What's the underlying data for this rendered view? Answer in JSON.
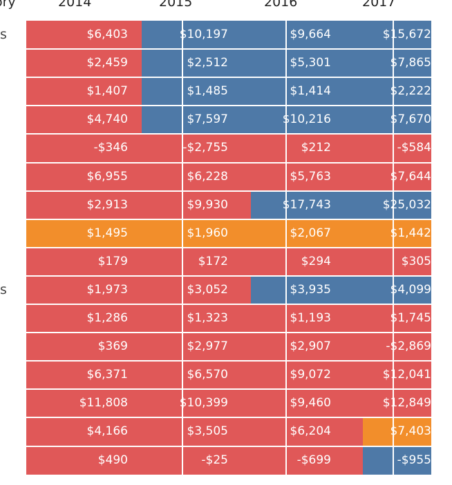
{
  "chart_data": {
    "type": "table",
    "header": {
      "category_label": "ory",
      "years": [
        "2014",
        "2015",
        "2016",
        "2017"
      ]
    },
    "row_labels": [
      "s",
      "",
      "",
      "",
      "",
      "",
      "",
      "",
      "",
      "s",
      "",
      "",
      "",
      "",
      "",
      ""
    ],
    "rows": [
      [
        "$6,403",
        "$10,197",
        "$9,664",
        "$15,672"
      ],
      [
        "$2,459",
        "$2,512",
        "$5,301",
        "$7,865"
      ],
      [
        "$1,407",
        "$1,485",
        "$1,414",
        "$2,222"
      ],
      [
        "$4,740",
        "$7,597",
        "$10,216",
        "$7,670"
      ],
      [
        "-$346",
        "-$2,755",
        "$212",
        "-$584"
      ],
      [
        "$6,955",
        "$6,228",
        "$5,763",
        "$7,644"
      ],
      [
        "$2,913",
        "$9,930",
        "$17,743",
        "$25,032"
      ],
      [
        "$1,495",
        "$1,960",
        "$2,067",
        "$1,442"
      ],
      [
        "$179",
        "$172",
        "$294",
        "$305"
      ],
      [
        "$1,973",
        "$3,052",
        "$3,935",
        "$4,099"
      ],
      [
        "$1,286",
        "$1,323",
        "$1,193",
        "$1,745"
      ],
      [
        "$369",
        "$2,977",
        "$2,907",
        "-$2,869"
      ],
      [
        "$6,371",
        "$6,570",
        "$9,072",
        "$12,041"
      ],
      [
        "$11,808",
        "$10,399",
        "$9,460",
        "$12,849"
      ],
      [
        "$4,166",
        "$3,505",
        "$6,204",
        "$7,403"
      ],
      [
        "$490",
        "-$25",
        "-$699",
        "-$955"
      ]
    ],
    "colors": {
      "red": "#e05858",
      "blue": "#4e79a7",
      "orange": "#f28e2b"
    },
    "cell_colors": [
      [
        "red",
        "blue",
        "blue",
        "blue"
      ],
      [
        "red",
        "blue",
        "blue",
        "blue"
      ],
      [
        "red",
        "blue",
        "blue",
        "blue"
      ],
      [
        "red",
        "blue",
        "blue",
        "blue"
      ],
      [
        "red",
        "red",
        "red",
        "red"
      ],
      [
        "red",
        "red",
        "red",
        "red"
      ],
      [
        "red",
        "red",
        "blue",
        "blue"
      ],
      [
        "orange",
        "orange",
        "orange",
        "orange"
      ],
      [
        "red",
        "red",
        "red",
        "red"
      ],
      [
        "red",
        "red",
        "blue",
        "blue"
      ],
      [
        "red",
        "red",
        "red",
        "red"
      ],
      [
        "red",
        "red",
        "red",
        "red"
      ],
      [
        "red",
        "red",
        "red",
        "red"
      ],
      [
        "red",
        "red",
        "red",
        "red"
      ],
      [
        "red",
        "red",
        "red",
        "orange"
      ],
      [
        "red",
        "red",
        "red",
        "blue"
      ]
    ]
  }
}
